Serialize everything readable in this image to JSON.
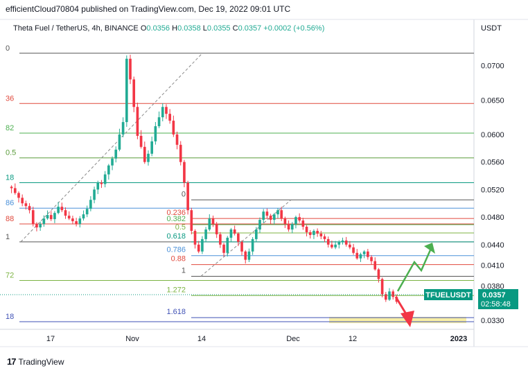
{
  "header": {
    "published": "efficientCloud70804 published on TradingView.com, Dec 19, 2022 09:01 UTC"
  },
  "legend": {
    "symbol": "Theta Fuel / TetherUS, 4h, BINANCE",
    "o_label": "O",
    "o": "0.0356",
    "h_label": "H",
    "h": "0.0358",
    "l_label": "L",
    "l": "0.0355",
    "c_label": "C",
    "c": "0.0357",
    "change": "+0.0002 (+0.56%)"
  },
  "axis_unit": "USDT",
  "price_tag": {
    "symbol": "TFUELUSDT",
    "price": "0.0357",
    "countdown": "02:58:48"
  },
  "footer": {
    "brand": "TradingView"
  },
  "colors": {
    "up": "#22ab94",
    "down": "#f23645",
    "accent": "#089981",
    "zone": "#f7ec9a"
  },
  "chart_data": {
    "type": "candlestick",
    "ylim": [
      0.0322,
      0.0748
    ],
    "y_ticks": [
      "0.0700",
      "0.0650",
      "0.0600",
      "0.0560",
      "0.0520",
      "0.0480",
      "0.0440",
      "0.0410",
      "0.0380",
      "0.0330"
    ],
    "x_ticks": [
      "17",
      "Nov",
      "14",
      "Dec",
      "12",
      "2023"
    ],
    "fib_left": [
      {
        "label": "0",
        "price": 0.0718,
        "color": "#555555"
      },
      {
        "label": "36",
        "price": 0.0645,
        "color": "#e0483c"
      },
      {
        "label": "82",
        "price": 0.0602,
        "color": "#4caf50"
      },
      {
        "label": "0.5",
        "price": 0.0566,
        "color": "#5a9b3a"
      },
      {
        "label": "18",
        "price": 0.053,
        "color": "#089981"
      },
      {
        "label": "86",
        "price": 0.0493,
        "color": "#4a90d9"
      },
      {
        "label": "88",
        "price": 0.047,
        "color": "#e0483c"
      },
      {
        "label": "1",
        "price": 0.0444,
        "color": "#555555"
      },
      {
        "label": "72",
        "price": 0.0388,
        "color": "#7cb342"
      },
      {
        "label": "18",
        "price": 0.0328,
        "color": "#3f51b5"
      }
    ],
    "fib_right": [
      {
        "label": "0",
        "price": 0.0505,
        "color": "#555555"
      },
      {
        "label": "0.236",
        "price": 0.0478,
        "color": "#e0483c"
      },
      {
        "label": "0.382",
        "price": 0.0469,
        "color": "#4caf50"
      },
      {
        "label": "0.5",
        "price": 0.0457,
        "color": "#7cb342"
      },
      {
        "label": "0.618",
        "price": 0.0444,
        "color": "#089981"
      },
      {
        "label": "0.786",
        "price": 0.0424,
        "color": "#4a90d9"
      },
      {
        "label": "0.88",
        "price": 0.0411,
        "color": "#e0483c"
      },
      {
        "label": "1",
        "price": 0.0394,
        "color": "#555555"
      },
      {
        "label": "1.272",
        "price": 0.0366,
        "color": "#7cb342"
      },
      {
        "label": "1.618",
        "price": 0.0334,
        "color": "#3f51b5"
      }
    ],
    "closes": [
      0.0522,
      0.0515,
      0.0508,
      0.05,
      0.0496,
      0.049,
      0.047,
      0.0465,
      0.047,
      0.0478,
      0.0483,
      0.0477,
      0.0486,
      0.0495,
      0.049,
      0.0482,
      0.0478,
      0.0474,
      0.047,
      0.0478,
      0.0484,
      0.0492,
      0.0505,
      0.052,
      0.053,
      0.0528,
      0.0542,
      0.0555,
      0.0565,
      0.0578,
      0.06,
      0.0618,
      0.071,
      0.068,
      0.064,
      0.0598,
      0.0582,
      0.056,
      0.0572,
      0.059,
      0.0612,
      0.0625,
      0.064,
      0.063,
      0.062,
      0.06,
      0.0585,
      0.056,
      0.053,
      0.049,
      0.046,
      0.044,
      0.043,
      0.0448,
      0.0462,
      0.0478,
      0.047,
      0.0455,
      0.044,
      0.0428,
      0.045,
      0.0462,
      0.0456,
      0.0444,
      0.043,
      0.0418,
      0.043,
      0.0448,
      0.0462,
      0.0476,
      0.0488,
      0.0482,
      0.0476,
      0.0484,
      0.049,
      0.0478,
      0.047,
      0.0462,
      0.047,
      0.048,
      0.0475,
      0.0466,
      0.0458,
      0.0454,
      0.046,
      0.0456,
      0.0452,
      0.0448,
      0.044,
      0.0436,
      0.044,
      0.0444,
      0.0446,
      0.044,
      0.0436,
      0.0428,
      0.042,
      0.0426,
      0.043,
      0.0422,
      0.0416,
      0.0404,
      0.039,
      0.0368,
      0.036,
      0.0372,
      0.0364,
      0.0357
    ]
  }
}
